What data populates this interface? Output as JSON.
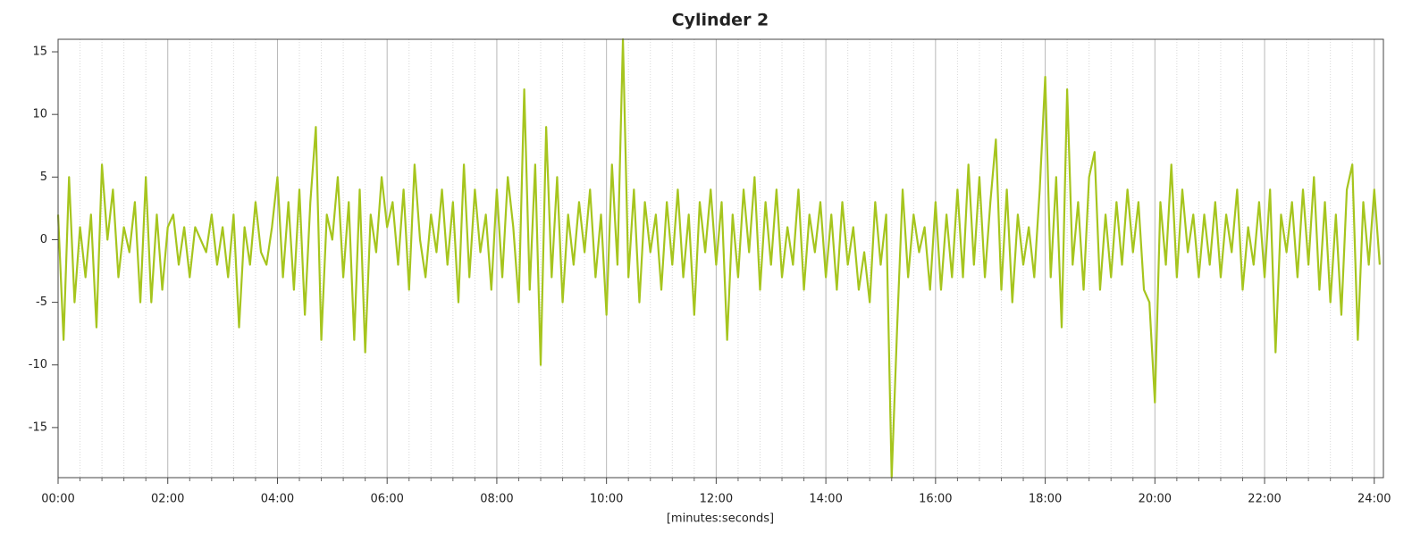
{
  "chart_data": {
    "type": "line",
    "title": "Cylinder 2",
    "x_label": "[minutes:seconds]",
    "color": "#a6c51e",
    "xlim": [
      0,
      1450
    ],
    "ylim": [
      -19,
      16
    ],
    "xticks": [
      {
        "value": 0,
        "label": "00:00"
      },
      {
        "value": 120,
        "label": "02:00"
      },
      {
        "value": 240,
        "label": "04:00"
      },
      {
        "value": 360,
        "label": "06:00"
      },
      {
        "value": 480,
        "label": "08:00"
      },
      {
        "value": 600,
        "label": "10:00"
      },
      {
        "value": 720,
        "label": "12:00"
      },
      {
        "value": 840,
        "label": "14:00"
      },
      {
        "value": 960,
        "label": "16:00"
      },
      {
        "value": 1080,
        "label": "18:00"
      },
      {
        "value": 1200,
        "label": "20:00"
      },
      {
        "value": 1320,
        "label": "22:00"
      },
      {
        "value": 1440,
        "label": "24:00"
      }
    ],
    "xminorticks": [
      24,
      48,
      72,
      96,
      144,
      168,
      192,
      216,
      264,
      288,
      312,
      336,
      384,
      408,
      432,
      456,
      504,
      528,
      552,
      576,
      624,
      648,
      672,
      696,
      744,
      768,
      792,
      816,
      864,
      888,
      912,
      936,
      984,
      1008,
      1032,
      1056,
      1104,
      1128,
      1152,
      1176,
      1224,
      1248,
      1272,
      1296,
      1344,
      1368,
      1392,
      1416
    ],
    "yticks": [
      -15,
      -10,
      -5,
      0,
      5,
      10,
      15
    ],
    "x": [
      0,
      6,
      12,
      18,
      24,
      30,
      36,
      42,
      48,
      54,
      60,
      66,
      72,
      78,
      84,
      90,
      96,
      102,
      108,
      114,
      120,
      126,
      132,
      138,
      144,
      150,
      156,
      162,
      168,
      174,
      180,
      186,
      192,
      198,
      204,
      210,
      216,
      222,
      228,
      234,
      240,
      246,
      252,
      258,
      264,
      270,
      276,
      282,
      288,
      294,
      300,
      306,
      312,
      318,
      324,
      330,
      336,
      342,
      348,
      354,
      360,
      366,
      372,
      378,
      384,
      390,
      396,
      402,
      408,
      414,
      420,
      426,
      432,
      438,
      444,
      450,
      456,
      462,
      468,
      474,
      480,
      486,
      492,
      498,
      504,
      510,
      516,
      522,
      528,
      534,
      540,
      546,
      552,
      558,
      564,
      570,
      576,
      582,
      588,
      594,
      600,
      606,
      612,
      618,
      624,
      630,
      636,
      642,
      648,
      654,
      660,
      666,
      672,
      678,
      684,
      690,
      696,
      702,
      708,
      714,
      720,
      726,
      732,
      738,
      744,
      750,
      756,
      762,
      768,
      774,
      780,
      786,
      792,
      798,
      804,
      810,
      816,
      822,
      828,
      834,
      840,
      846,
      852,
      858,
      864,
      870,
      876,
      882,
      888,
      894,
      900,
      906,
      912,
      918,
      924,
      930,
      936,
      942,
      948,
      954,
      960,
      966,
      972,
      978,
      984,
      990,
      996,
      1002,
      1008,
      1014,
      1020,
      1026,
      1032,
      1038,
      1044,
      1050,
      1056,
      1062,
      1068,
      1074,
      1080,
      1086,
      1092,
      1098,
      1104,
      1110,
      1116,
      1122,
      1128,
      1134,
      1140,
      1146,
      1152,
      1158,
      1164,
      1170,
      1176,
      1182,
      1188,
      1194,
      1200,
      1206,
      1212,
      1218,
      1224,
      1230,
      1236,
      1242,
      1248,
      1254,
      1260,
      1266,
      1272,
      1278,
      1284,
      1290,
      1296,
      1302,
      1308,
      1314,
      1320,
      1326,
      1332,
      1338,
      1344,
      1350,
      1356,
      1362,
      1368,
      1374,
      1380,
      1386,
      1392,
      1398,
      1404,
      1410,
      1416,
      1422,
      1428,
      1434,
      1440,
      1446
    ],
    "values": [
      2,
      -8,
      5,
      -5,
      1,
      -3,
      2,
      -7,
      6,
      0,
      4,
      -3,
      1,
      -1,
      3,
      -5,
      5,
      -5,
      2,
      -4,
      1,
      2,
      -2,
      1,
      -3,
      1,
      0,
      -1,
      2,
      -2,
      1,
      -3,
      2,
      -7,
      1,
      -2,
      3,
      -1,
      -2,
      1,
      5,
      -3,
      3,
      -4,
      4,
      -6,
      3,
      9,
      -8,
      2,
      0,
      5,
      -3,
      3,
      -8,
      4,
      -9,
      2,
      -1,
      5,
      1,
      3,
      -2,
      4,
      -4,
      6,
      0,
      -3,
      2,
      -1,
      4,
      -2,
      3,
      -5,
      6,
      -3,
      4,
      -1,
      2,
      -4,
      4,
      -3,
      5,
      1,
      -5,
      12,
      -4,
      6,
      -10,
      9,
      -3,
      5,
      -5,
      2,
      -2,
      3,
      -1,
      4,
      -3,
      2,
      -6,
      6,
      -2,
      16,
      -3,
      4,
      -5,
      3,
      -1,
      2,
      -4,
      3,
      -2,
      4,
      -3,
      2,
      -6,
      3,
      -1,
      4,
      -2,
      3,
      -8,
      2,
      -3,
      4,
      -1,
      5,
      -4,
      3,
      -2,
      4,
      -3,
      1,
      -2,
      4,
      -4,
      2,
      -1,
      3,
      -3,
      2,
      -4,
      3,
      -2,
      1,
      -4,
      -1,
      -5,
      3,
      -2,
      2,
      -19,
      -7,
      4,
      -3,
      2,
      -1,
      1,
      -4,
      3,
      -4,
      2,
      -3,
      4,
      -3,
      6,
      -2,
      5,
      -3,
      3,
      8,
      -4,
      4,
      -5,
      2,
      -2,
      1,
      -3,
      4,
      13,
      -3,
      5,
      -7,
      12,
      -2,
      3,
      -4,
      5,
      7,
      -4,
      2,
      -3,
      3,
      -2,
      4,
      -1,
      3,
      -4,
      -5,
      -13,
      3,
      -2,
      6,
      -3,
      4,
      -1,
      2,
      -3,
      2,
      -2,
      3,
      -3,
      2,
      -1,
      4,
      -4,
      1,
      -2,
      3,
      -3,
      4,
      -9,
      2,
      -1,
      3,
      -3,
      4,
      -2,
      5,
      -4,
      3,
      -5,
      2,
      -6,
      4,
      6,
      -8,
      3,
      -2,
      4,
      -2
    ]
  }
}
